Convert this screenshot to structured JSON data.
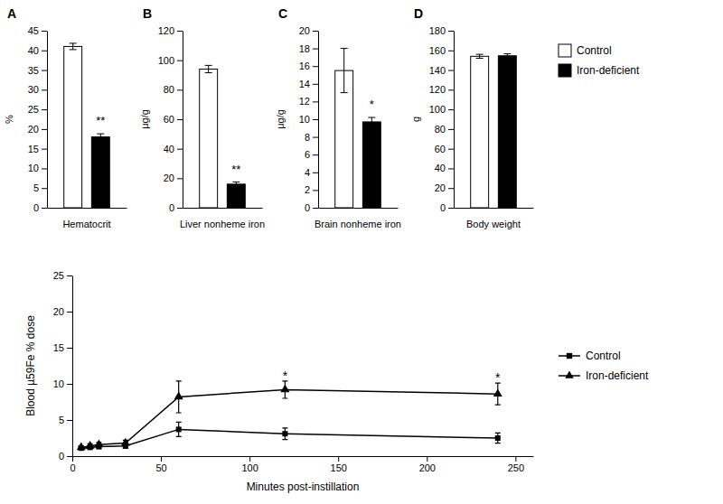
{
  "chart_data": [
    {
      "type": "bar",
      "title": "A",
      "xlabel": "Hematocrit",
      "ylabel": "%",
      "categories": [
        null
      ],
      "tick_labels": "y",
      "ylim": [
        0,
        45
      ],
      "yticks": [
        0,
        5,
        10,
        15,
        20,
        25,
        30,
        35,
        40,
        45
      ],
      "series": [
        {
          "color": "white",
          "values": [
            41.0
          ],
          "errors": [
            0.8
          ]
        },
        {
          "color": "black",
          "values": [
            18.0
          ],
          "errors": [
            0.8
          ]
        }
      ],
      "annotations": [
        {
          "text": "**",
          "series": 1
        }
      ]
    },
    {
      "type": "bar",
      "title": "B",
      "xlabel": "Liver nonheme iron",
      "ylabel": "μg/g",
      "categories": [
        null
      ],
      "tick_labels": "y",
      "ylim": [
        0,
        120
      ],
      "yticks": [
        0,
        20,
        40,
        60,
        80,
        100,
        120
      ],
      "series": [
        {
          "color": "white",
          "values": [
            94.0
          ],
          "errors": [
            2.5
          ]
        },
        {
          "color": "black",
          "values": [
            16.0
          ],
          "errors": [
            1.5
          ]
        }
      ],
      "annotations": [
        {
          "text": "**",
          "series": 1
        }
      ]
    },
    {
      "type": "bar",
      "title": "C",
      "xlabel": "Brain nonheme iron",
      "ylabel": "μg/g",
      "categories": [
        null
      ],
      "tick_labels": "y",
      "ylim": [
        0,
        20
      ],
      "yticks": [
        0,
        2,
        4,
        6,
        8,
        10,
        12,
        14,
        16,
        18,
        20
      ],
      "series": [
        {
          "color": "white",
          "values": [
            15.5
          ],
          "errors": [
            2.5
          ]
        },
        {
          "color": "black",
          "values": [
            9.7
          ],
          "errors": [
            0.5
          ]
        }
      ],
      "annotations": [
        {
          "text": "*",
          "series": 1
        }
      ]
    },
    {
      "type": "bar",
      "title": "D",
      "xlabel": "Body weight",
      "ylabel": "g",
      "categories": [
        null
      ],
      "tick_labels": "y",
      "legend": "right",
      "ylim": [
        0,
        180
      ],
      "yticks": [
        0,
        20,
        40,
        60,
        80,
        100,
        120,
        140,
        160,
        180
      ],
      "series": [
        {
          "name": "Control",
          "color": "white",
          "values": [
            154.0
          ],
          "errors": [
            2.0
          ]
        },
        {
          "name": "Iron-deficient",
          "color": "black",
          "values": [
            154.5
          ],
          "errors": [
            2.0
          ]
        }
      ]
    },
    {
      "type": "line",
      "xlabel": "Minutes post-instillation",
      "ylabel": "Blood µ59Fe % dose",
      "legend": "right",
      "xlim": [
        0,
        260
      ],
      "xticks": [
        0,
        50,
        100,
        150,
        200,
        250
      ],
      "ylim": [
        0,
        25
      ],
      "yticks": [
        0,
        5,
        10,
        15,
        20,
        25
      ],
      "x": [
        5,
        10,
        15,
        30,
        60,
        120,
        240
      ],
      "series": [
        {
          "name": "Control",
          "color": "black",
          "marker": "square",
          "line_style": "solid",
          "values": [
            1.1,
            1.2,
            1.3,
            1.4,
            3.7,
            3.1,
            2.5
          ],
          "errors": [
            0.2,
            0.2,
            0.2,
            0.3,
            1.0,
            0.8,
            0.7
          ]
        },
        {
          "name": "Iron-deficient",
          "color": "black",
          "marker": "triangle",
          "line_style": "solid",
          "values": [
            1.2,
            1.4,
            1.6,
            1.8,
            8.2,
            9.2,
            8.6
          ],
          "errors": [
            0.2,
            0.3,
            0.3,
            0.4,
            2.2,
            1.2,
            1.5
          ]
        }
      ],
      "annotations": [
        {
          "text": "*",
          "x": 120,
          "y": 10.5
        },
        {
          "text": "*",
          "x": 240,
          "y": 10.2
        }
      ]
    }
  ]
}
